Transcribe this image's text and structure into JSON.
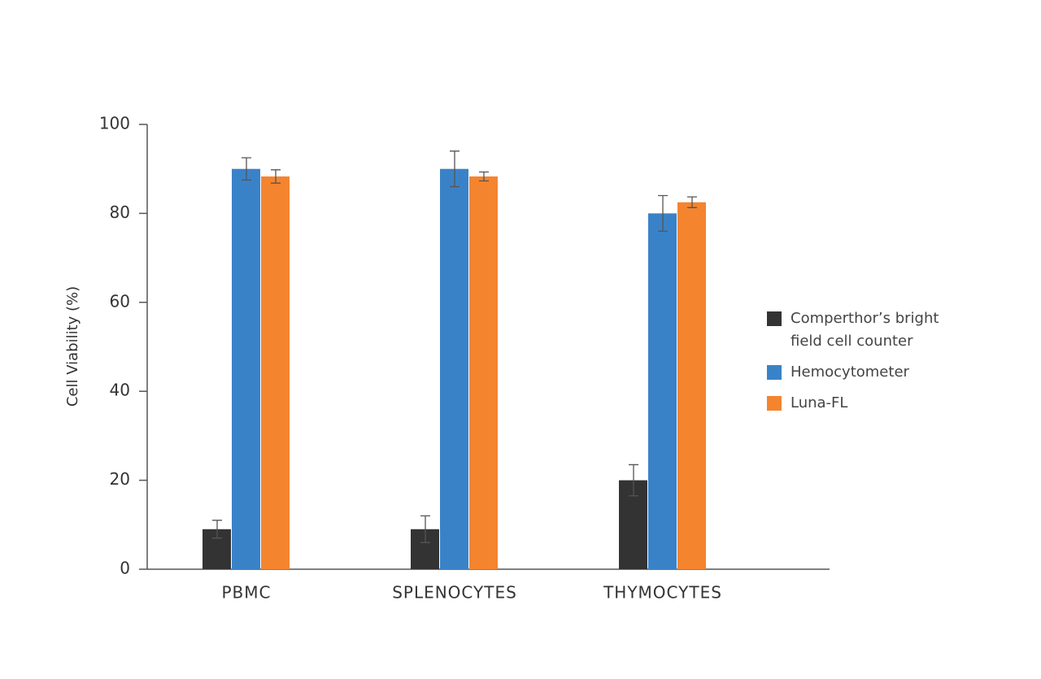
{
  "chart_data": {
    "type": "bar",
    "ylabel": "Cell Viability (%)",
    "categories": [
      "PBMC",
      "SPLENOCYTES",
      "THYMOCYTES"
    ],
    "series": [
      {
        "name": "Comperthor’s bright field cell counter",
        "color": "#333333",
        "values": [
          9,
          9,
          20
        ],
        "errors": [
          2,
          3,
          3.5
        ]
      },
      {
        "name": "Hemocytometer",
        "color": "#3a82c8",
        "values": [
          90,
          90,
          80
        ],
        "errors": [
          2.5,
          4,
          4
        ]
      },
      {
        "name": "Luna-FL",
        "color": "#f5842f",
        "values": [
          88.3,
          88.3,
          82.5
        ],
        "errors": [
          1.5,
          1,
          1.2
        ]
      }
    ],
    "ylim": [
      0,
      100
    ],
    "yticks": [
      0,
      20,
      40,
      60,
      80,
      100
    ],
    "grid": false,
    "legend": "right"
  }
}
